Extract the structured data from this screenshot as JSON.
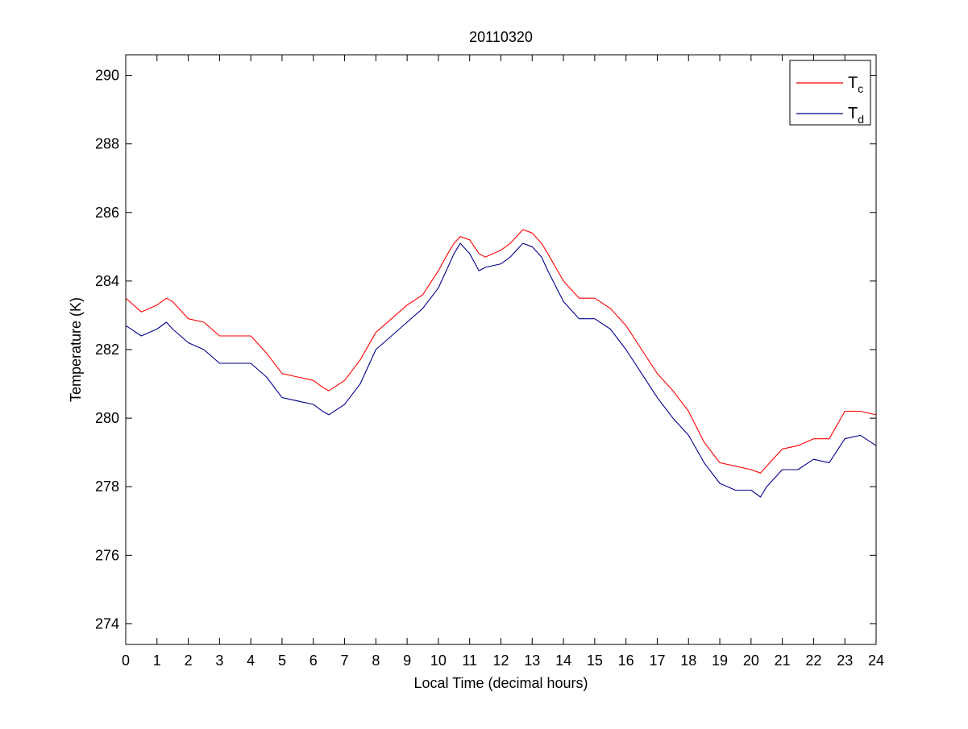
{
  "chart_data": {
    "type": "line",
    "title": "20110320",
    "xlabel": "Local Time (decimal hours)",
    "ylabel": "Temperature (K)",
    "xlim": [
      0,
      24
    ],
    "ylim": [
      273.4,
      290.6
    ],
    "xticks": [
      0,
      1,
      2,
      3,
      4,
      5,
      6,
      7,
      8,
      9,
      10,
      11,
      12,
      13,
      14,
      15,
      16,
      17,
      18,
      19,
      20,
      21,
      22,
      23,
      24
    ],
    "yticks": [
      274,
      276,
      278,
      280,
      282,
      284,
      286,
      288,
      290
    ],
    "grid": false,
    "legend_position": "top-right",
    "series": [
      {
        "name": "T",
        "subscript": "c",
        "color": "#ff0000",
        "x": [
          0,
          0.5,
          1,
          1.3,
          1.5,
          2,
          2.5,
          3,
          3.5,
          4,
          4.5,
          5,
          5.5,
          6,
          6.3,
          6.5,
          7,
          7.5,
          8,
          8.5,
          9,
          9.5,
          10,
          10.3,
          10.5,
          10.7,
          11,
          11.3,
          11.5,
          12,
          12.3,
          12.5,
          12.7,
          13,
          13.3,
          13.5,
          14,
          14.5,
          15,
          15.5,
          16,
          16.5,
          17,
          17.5,
          18,
          18.5,
          19,
          19.5,
          20,
          20.3,
          20.5,
          21,
          21.5,
          22,
          22.5,
          23,
          23.5,
          24
        ],
        "y": [
          283.5,
          283.1,
          283.3,
          283.5,
          283.4,
          282.9,
          282.8,
          282.4,
          282.4,
          282.4,
          281.9,
          281.3,
          281.2,
          281.1,
          280.9,
          280.8,
          281.1,
          281.7,
          282.5,
          282.9,
          283.3,
          283.6,
          284.3,
          284.8,
          285.1,
          285.3,
          285.2,
          284.8,
          284.7,
          284.9,
          285.1,
          285.3,
          285.5,
          285.4,
          285.1,
          284.8,
          284.0,
          283.5,
          283.5,
          283.2,
          282.7,
          282.0,
          281.3,
          280.8,
          280.2,
          279.3,
          278.7,
          278.6,
          278.5,
          278.4,
          278.6,
          279.1,
          279.2,
          279.4,
          279.4,
          280.2,
          280.2,
          280.1
        ]
      },
      {
        "name": "T",
        "subscript": "d",
        "color": "#00008b",
        "x": [
          0,
          0.5,
          1,
          1.3,
          1.5,
          2,
          2.5,
          3,
          3.5,
          4,
          4.5,
          5,
          5.5,
          6,
          6.3,
          6.5,
          7,
          7.5,
          8,
          8.5,
          9,
          9.5,
          10,
          10.3,
          10.5,
          10.7,
          11,
          11.3,
          11.5,
          12,
          12.3,
          12.5,
          12.7,
          13,
          13.3,
          13.5,
          14,
          14.5,
          15,
          15.5,
          16,
          16.5,
          17,
          17.5,
          18,
          18.5,
          19,
          19.5,
          20,
          20.3,
          20.5,
          21,
          21.5,
          22,
          22.5,
          23,
          23.5,
          24
        ],
        "y": [
          282.7,
          282.4,
          282.6,
          282.8,
          282.6,
          282.2,
          282.0,
          281.6,
          281.6,
          281.6,
          281.2,
          280.6,
          280.5,
          280.4,
          280.2,
          280.1,
          280.4,
          281.0,
          282.0,
          282.4,
          282.8,
          283.2,
          283.8,
          284.4,
          284.8,
          285.1,
          284.8,
          284.3,
          284.4,
          284.5,
          284.7,
          284.9,
          285.1,
          285.0,
          284.7,
          284.3,
          283.4,
          282.9,
          282.9,
          282.6,
          282.0,
          281.3,
          280.6,
          280.0,
          279.5,
          278.7,
          278.1,
          277.9,
          277.9,
          277.7,
          278.0,
          278.5,
          278.5,
          278.8,
          278.7,
          279.4,
          279.5,
          279.2
        ]
      }
    ]
  }
}
